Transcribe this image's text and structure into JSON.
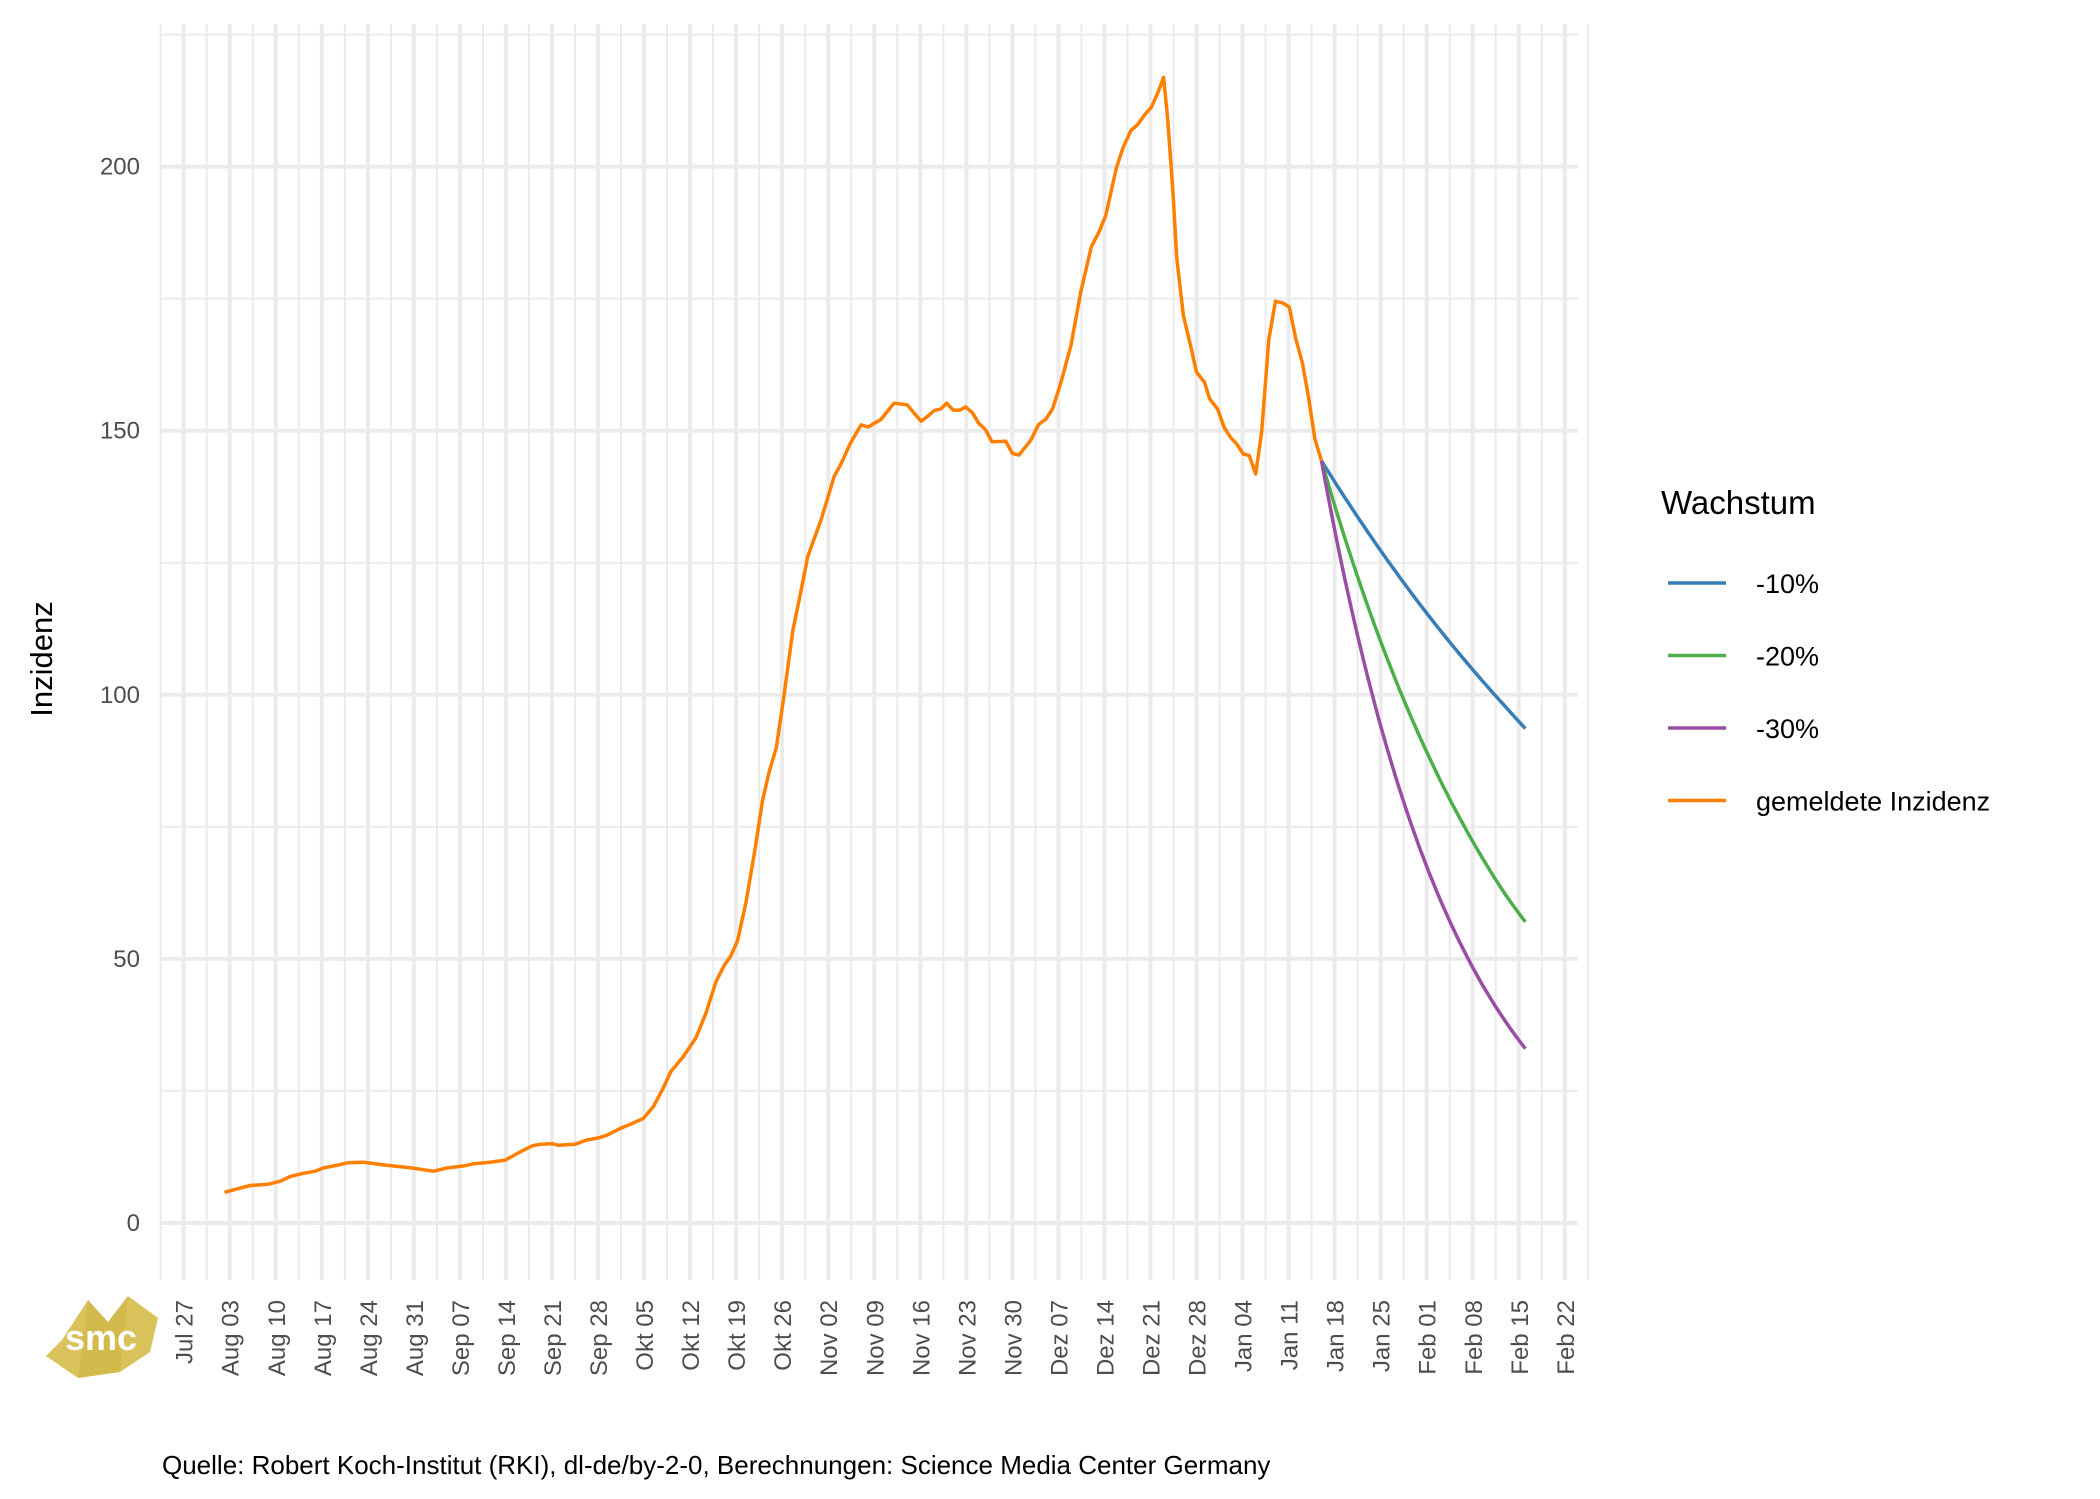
{
  "chart_data": {
    "type": "line",
    "title": "",
    "xlabel": "",
    "ylabel": "Inzidenz",
    "caption": "Quelle: Robert Koch-Institut (RKI), dl-de/by-2-0, Berechnungen: Science Media Center Germany",
    "logo_text": "smc",
    "x_unit": "days",
    "x_tick_step_days": 7,
    "x_ticks": [
      "Jul 27",
      "Aug 03",
      "Aug 10",
      "Aug 17",
      "Aug 24",
      "Aug 31",
      "Sep 07",
      "Sep 14",
      "Sep 21",
      "Sep 28",
      "Okt 05",
      "Okt 12",
      "Okt 19",
      "Okt 26",
      "Nov 02",
      "Nov 09",
      "Nov 16",
      "Nov 23",
      "Nov 30",
      "Dez 07",
      "Dez 14",
      "Dez 21",
      "Dez 28",
      "Jan 04",
      "Jan 11",
      "Jan 18",
      "Jan 25",
      "Feb 01",
      "Feb 08",
      "Feb 15",
      "Feb 22"
    ],
    "xlim": [
      -3.6,
      212
    ],
    "ylim": [
      -10.8,
      227
    ],
    "y_ticks": [
      0,
      50,
      100,
      150,
      200
    ],
    "y_minor": [
      25,
      75,
      125,
      175,
      225
    ],
    "grid": true,
    "legend": {
      "title": "Wachstum",
      "position": "right"
    },
    "series": [
      {
        "name": "-10%",
        "color": "#377eb8",
        "interp": "exponential",
        "points": [
          [
            173,
            144.3
          ],
          [
            180,
            130.9
          ],
          [
            187,
            118.7
          ],
          [
            194,
            107.7
          ],
          [
            201,
            97.7
          ],
          [
            204,
            93.6
          ]
        ]
      },
      {
        "name": "-20%",
        "color": "#4daf4a",
        "interp": "exponential",
        "points": [
          [
            173,
            144.3
          ],
          [
            180,
            116.9
          ],
          [
            187,
            94.7
          ],
          [
            194,
            76.7
          ],
          [
            201,
            62.1
          ],
          [
            204,
            57.0
          ]
        ]
      },
      {
        "name": "-30%",
        "color": "#984ea3",
        "interp": "exponential",
        "points": [
          [
            173,
            144.3
          ],
          [
            180,
            103.5
          ],
          [
            187,
            74.2
          ],
          [
            194,
            53.2
          ],
          [
            201,
            38.1
          ],
          [
            204,
            33.0
          ]
        ]
      },
      {
        "name": "gemeldete Inzidenz",
        "color": "#ff7f00",
        "interp": "linear",
        "points": [
          [
            6.2,
            5.8
          ],
          [
            8.6,
            6.6
          ],
          [
            10.1,
            7.1
          ],
          [
            12.7,
            7.3
          ],
          [
            14.7,
            7.9
          ],
          [
            16.2,
            8.8
          ],
          [
            18.2,
            9.4
          ],
          [
            20,
            9.8
          ],
          [
            21.2,
            10.4
          ],
          [
            23.2,
            10.9
          ],
          [
            25,
            11.4
          ],
          [
            27.3,
            11.5
          ],
          [
            30.4,
            11.0
          ],
          [
            32.4,
            10.7
          ],
          [
            34.2,
            10.5
          ],
          [
            38,
            9.8
          ],
          [
            40,
            10.4
          ],
          [
            42.6,
            10.8
          ],
          [
            44.1,
            11.2
          ],
          [
            46.6,
            11.5
          ],
          [
            48.9,
            11.9
          ],
          [
            50.2,
            12.8
          ],
          [
            51.4,
            13.6
          ],
          [
            53,
            14.6
          ],
          [
            54.2,
            14.9
          ],
          [
            56,
            15.0
          ],
          [
            57,
            14.7
          ],
          [
            59.5,
            14.9
          ],
          [
            61.3,
            15.7
          ],
          [
            63.1,
            16.1
          ],
          [
            64.3,
            16.6
          ],
          [
            66.4,
            17.9
          ],
          [
            68.1,
            18.8
          ],
          [
            69.9,
            19.8
          ],
          [
            71.4,
            22.0
          ],
          [
            72.9,
            25.5
          ],
          [
            74.1,
            28.7
          ],
          [
            75.9,
            31.4
          ],
          [
            77.9,
            35.1
          ],
          [
            79.4,
            39.7
          ],
          [
            80.9,
            45.6
          ],
          [
            82.2,
            48.8
          ],
          [
            83.2,
            50.6
          ],
          [
            84.2,
            53.4
          ],
          [
            85.5,
            60.7
          ],
          [
            86.8,
            70.3
          ],
          [
            88,
            79.9
          ],
          [
            89,
            85.3
          ],
          [
            90.1,
            90.0
          ],
          [
            91.3,
            100.1
          ],
          [
            92.6,
            112.0
          ],
          [
            93.8,
            119.3
          ],
          [
            94.9,
            126.2
          ],
          [
            96.9,
            133.1
          ],
          [
            98.9,
            141.3
          ],
          [
            99.9,
            143.6
          ],
          [
            101.4,
            147.7
          ],
          [
            103,
            151.1
          ],
          [
            104.1,
            150.7
          ],
          [
            105,
            151.4
          ],
          [
            106,
            152.1
          ],
          [
            108,
            155.2
          ],
          [
            110,
            154.9
          ],
          [
            112.1,
            151.8
          ],
          [
            113.1,
            152.7
          ],
          [
            114.1,
            153.8
          ],
          [
            115.1,
            154.1
          ],
          [
            116,
            155.2
          ],
          [
            117,
            153.9
          ],
          [
            118,
            153.9
          ],
          [
            118.9,
            154.5
          ],
          [
            119.9,
            153.4
          ],
          [
            120.9,
            151.4
          ],
          [
            121.9,
            150.2
          ],
          [
            122.9,
            147.9
          ],
          [
            125,
            148.0
          ],
          [
            126,
            145.7
          ],
          [
            127,
            145.4
          ],
          [
            128.8,
            148.2
          ],
          [
            130,
            151.2
          ],
          [
            131.1,
            152.2
          ],
          [
            132.1,
            154.1
          ],
          [
            133.4,
            159.2
          ],
          [
            134.9,
            166.1
          ],
          [
            136.4,
            176.3
          ],
          [
            138,
            184.8
          ],
          [
            139.2,
            187.7
          ],
          [
            140.2,
            190.8
          ],
          [
            141.8,
            199.7
          ],
          [
            142.8,
            203.5
          ],
          [
            144,
            206.8
          ],
          [
            145,
            207.9
          ],
          [
            146.3,
            210.1
          ],
          [
            147.1,
            211.2
          ],
          [
            148.1,
            213.9
          ],
          [
            149,
            216.9
          ],
          [
            149.6,
            209.2
          ],
          [
            150.4,
            195.3
          ],
          [
            151,
            182.6
          ],
          [
            152,
            171.8
          ],
          [
            153.2,
            165.5
          ],
          [
            154,
            161.1
          ],
          [
            155.2,
            159.2
          ],
          [
            156,
            156.0
          ],
          [
            157.2,
            154.1
          ],
          [
            158.2,
            150.6
          ],
          [
            159.2,
            148.7
          ],
          [
            160.1,
            147.5
          ],
          [
            161.1,
            145.6
          ],
          [
            162,
            145.3
          ],
          [
            163,
            141.8
          ],
          [
            163.9,
            149.7
          ],
          [
            165,
            167.4
          ],
          [
            166,
            174.5
          ],
          [
            167.1,
            174.2
          ],
          [
            168.1,
            173.4
          ],
          [
            169.1,
            167.4
          ],
          [
            170.1,
            162.8
          ],
          [
            171,
            156.6
          ],
          [
            172,
            148.4
          ],
          [
            173,
            144.3
          ]
        ]
      }
    ]
  }
}
